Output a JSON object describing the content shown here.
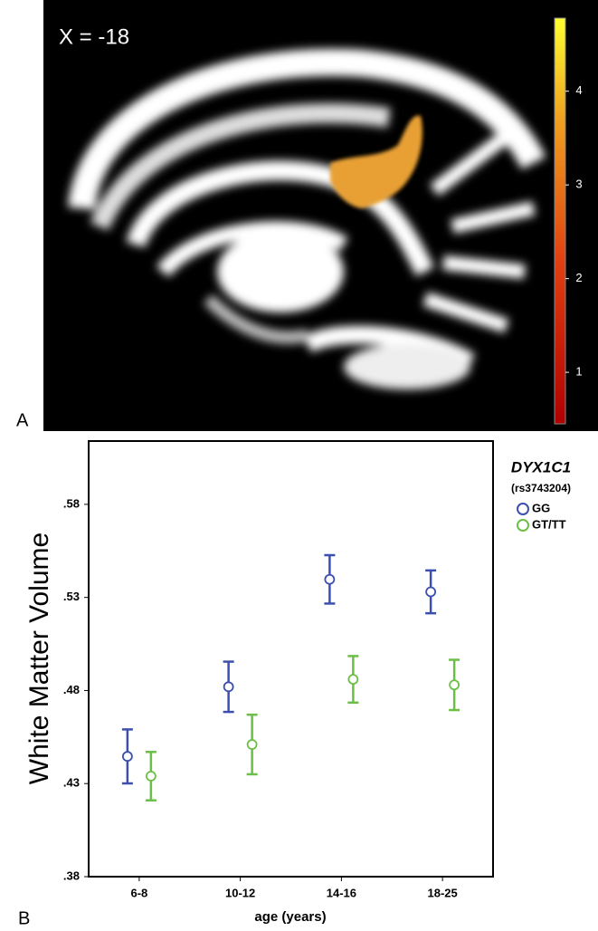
{
  "panel_a": {
    "letter": "A",
    "slice_label": "X = -18",
    "colorbar": {
      "lim": [
        0.45,
        4.78
      ],
      "ticks": [
        1,
        2,
        3,
        4
      ]
    }
  },
  "chart_data": {
    "type": "errorbar",
    "panel_letter": "B",
    "y_label": "White Matter Volume",
    "x_label": "age (years)",
    "legend_title": "DYX1C1",
    "legend_subtitle": "(rs3743204)",
    "categories": [
      "6-8",
      "10-12",
      "14-16",
      "18-25"
    ],
    "series": [
      {
        "name": "GG",
        "color": "#3b4fb0",
        "values": [
          0.4446,
          0.482,
          0.5397,
          0.533
        ],
        "errors": [
          0.0145,
          0.0135,
          0.013,
          0.0115
        ]
      },
      {
        "name": "GT/TT",
        "color": "#6cbf45",
        "values": [
          0.434,
          0.451,
          0.486,
          0.483
        ],
        "errors": [
          0.013,
          0.016,
          0.0125,
          0.0135
        ]
      }
    ],
    "ylim": [
      0.38,
      0.614
    ],
    "yticks": [
      {
        "value": 0.38,
        "label": ".38"
      },
      {
        "value": 0.43,
        "label": ".43"
      },
      {
        "value": 0.48,
        "label": ".48"
      },
      {
        "value": 0.53,
        "label": ".53"
      },
      {
        "value": 0.58,
        "label": ".58"
      }
    ]
  }
}
